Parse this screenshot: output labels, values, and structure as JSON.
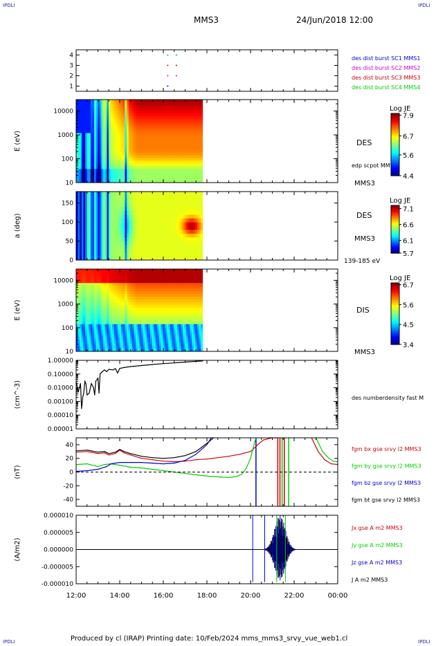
{
  "header": {
    "corner_label": "IPDLI",
    "spacecraft": "MMS3",
    "date_time": "24/Jun/2018 12:00"
  },
  "footer": {
    "text": "Produced by cl (IRAP)   Printing date: 10/Feb/2024   mms_mms3_srvy_vue_web1.cl"
  },
  "colors": {
    "mms1": "#0000cc",
    "mms2": "#cc00cc",
    "mms3": "#cc0000",
    "mms4": "#00cc00"
  },
  "chart_data": [
    {
      "type": "scatter",
      "panel": "burst-availability",
      "ylim": [
        0.5,
        4.5
      ],
      "yticks": [
        "1",
        "2",
        "3",
        "4"
      ],
      "legend": [
        {
          "name": "des dist burst SC1 MMS1",
          "color": "#0000cc"
        },
        {
          "name": "des dist burst SC2 MMS2",
          "color": "#cc00cc"
        },
        {
          "name": "des dist burst SC3 MMS3",
          "color": "#cc0000"
        },
        {
          "name": "des dist burst SC4 MMS4",
          "color": "#00cc00"
        }
      ],
      "series": [
        {
          "sc": 1,
          "color": "#0000cc",
          "x": [
            16.2
          ]
        },
        {
          "sc": 2,
          "color": "#cc00cc",
          "x": [
            16.2,
            16.6
          ]
        },
        {
          "sc": 3,
          "color": "#cc0000",
          "x": [
            16.2,
            16.6
          ]
        },
        {
          "sc": 4,
          "color": "#00cc00",
          "x": [
            16.2,
            16.6
          ]
        }
      ]
    },
    {
      "type": "heatmap",
      "panel": "des-energy",
      "ylabel": "E (eV)",
      "yscale": "log",
      "ylim": [
        10,
        30000
      ],
      "yticks": [
        "10",
        "100",
        "1000",
        "10000"
      ],
      "data_end": 17.8,
      "label": "DES",
      "side_label": "edp scpot MMS3",
      "sc_label": "MMS3",
      "colorbar": {
        "title": "Log JE",
        "min": 4.4,
        "max": 8.0,
        "ticks": [
          "7.9",
          "6.7",
          "5.6",
          "4.4"
        ]
      }
    },
    {
      "type": "heatmap",
      "panel": "des-pitch",
      "ylabel": "a (deg)",
      "ylim": [
        0,
        180
      ],
      "yticks": [
        "0",
        "50",
        "100",
        "150"
      ],
      "data_end": 17.8,
      "label": "DES",
      "sc_label": "MMS3",
      "energy_range": "139-185 eV",
      "colorbar": {
        "title": "Log JE",
        "min": 5.7,
        "max": 7.2,
        "ticks": [
          "7.1",
          "6.6",
          "6.1",
          "5.7"
        ]
      }
    },
    {
      "type": "heatmap",
      "panel": "dis-energy",
      "ylabel": "E (eV)",
      "yscale": "log",
      "ylim": [
        10,
        30000
      ],
      "yticks": [
        "10",
        "100",
        "1000",
        "10000"
      ],
      "data_end": 17.8,
      "label": "DIS",
      "sc_label": "MMS3",
      "colorbar": {
        "title": "Log JE",
        "min": 3.4,
        "max": 6.8,
        "ticks": [
          "6.7",
          "5.6",
          "4.5",
          "3.4"
        ]
      }
    },
    {
      "type": "line",
      "panel": "density",
      "ylabel": "(cm^-3)",
      "yscale": "log",
      "ylim": [
        1e-05,
        1.0
      ],
      "yticks": [
        "0.00001",
        "0.00010",
        "0.00100",
        "0.01000",
        "0.10000",
        "1.00000"
      ],
      "legend": [
        {
          "name": "des numberdensity fast M",
          "color": "#000000"
        }
      ],
      "series": [
        {
          "name": "des numberdensity fast M",
          "color": "#000000",
          "x": [
            12.0,
            12.1,
            12.2,
            12.25,
            12.3,
            12.35,
            12.4,
            12.45,
            12.5,
            12.6,
            12.7,
            12.8,
            12.85,
            12.9,
            13.0,
            13.05,
            13.1,
            13.2,
            13.3,
            13.4,
            13.5,
            13.7,
            13.8,
            13.9,
            14.0,
            14.2,
            14.5,
            15.0,
            15.5,
            16.0,
            16.5,
            17.0,
            17.5,
            17.8
          ],
          "y": [
            0.03,
            0.005,
            0.02,
            0.0003,
            0.002,
            0.004,
            0.03,
            0.02,
            0.003,
            0.004,
            0.02,
            0.01,
            0.003,
            0.03,
            0.05,
            0.004,
            0.1,
            0.15,
            0.2,
            0.15,
            0.22,
            0.2,
            0.25,
            0.12,
            0.26,
            0.3,
            0.35,
            0.42,
            0.5,
            0.58,
            0.65,
            0.75,
            0.85,
            0.9
          ]
        }
      ]
    },
    {
      "type": "line",
      "panel": "magnetic-field",
      "ylabel": "(nT)",
      "ylim": [
        -50,
        50
      ],
      "yticks": [
        "-40",
        "-20",
        "0",
        "20",
        "40"
      ],
      "legend": [
        {
          "name": "fgm bx gse srvy l2 MMS3",
          "color": "#cc0000"
        },
        {
          "name": "fgm by gse srvy l2 MMS3",
          "color": "#00cc00"
        },
        {
          "name": "fgm bz gse srvy l2 MMS3",
          "color": "#0000cc"
        },
        {
          "name": "fgm bt gse srvy l2 MMS3",
          "color": "#000000"
        }
      ],
      "series": [
        {
          "name": "fgm bx gse srvy l2 MMS3",
          "color": "#cc0000",
          "x": [
            12.0,
            12.5,
            13.0,
            13.3,
            13.5,
            13.8,
            14.0,
            14.2,
            14.5,
            15.0,
            15.5,
            16.0,
            16.5,
            17.0,
            17.5,
            18.0,
            18.5,
            19.0,
            19.5,
            20.0,
            20.2,
            20.4,
            20.6,
            21.0,
            21.2
          ],
          "y": [
            29,
            30,
            27,
            28,
            25,
            27,
            32,
            28,
            25,
            20,
            18,
            16,
            15,
            16,
            18,
            19,
            21,
            23,
            26,
            30,
            36,
            42,
            47,
            60,
            75
          ]
        },
        {
          "name": "fgm by gse srvy l2 MMS3",
          "color": "#00cc00",
          "x": [
            12.0,
            12.5,
            13.0,
            13.3,
            13.6,
            14.0,
            14.5,
            15.0,
            15.5,
            16.0,
            16.5,
            17.0,
            17.5,
            18.0,
            18.5,
            19.0,
            19.3,
            19.6,
            19.8,
            20.0,
            20.2,
            20.25
          ],
          "y": [
            11,
            12,
            8,
            11,
            12,
            10,
            7,
            6,
            4,
            2,
            0,
            -2,
            -4,
            -6,
            -7,
            -8,
            -7,
            -3,
            5,
            20,
            45,
            60
          ]
        },
        {
          "name": "fgm bz gse srvy l2 MMS3",
          "color": "#0000cc",
          "x": [
            12.0,
            12.5,
            13.0,
            13.4,
            13.6,
            14.0,
            14.5,
            15.0,
            15.5,
            16.0,
            16.5,
            17.0,
            17.5,
            18.0,
            18.2
          ],
          "y": [
            1,
            2,
            4,
            8,
            12,
            14,
            14,
            14,
            13,
            12,
            13,
            17,
            26,
            40,
            55
          ]
        },
        {
          "name": "fgm bt gse srvy l2 MMS3",
          "color": "#000000",
          "x": [
            12.0,
            12.5,
            13.0,
            13.3,
            13.5,
            13.8,
            14.0,
            14.2,
            14.5,
            15.0,
            15.5,
            16.0,
            16.5,
            17.0,
            17.5,
            18.0,
            18.3
          ],
          "y": [
            31,
            32,
            29,
            30,
            27,
            29,
            33,
            30,
            27,
            23,
            21,
            20,
            21,
            24,
            30,
            42,
            55
          ]
        },
        {
          "name": "fgm by gse srvy l2 MMS3",
          "color": "#00cc00",
          "x": [
            23.0,
            23.3,
            23.6,
            23.8,
            24.0
          ],
          "y": [
            50,
            30,
            20,
            16,
            15
          ]
        },
        {
          "name": "fgm bx gse srvy l2 MMS3",
          "color": "#cc0000",
          "x": [
            22.8,
            23.1,
            23.4,
            23.7,
            24.0
          ],
          "y": [
            50,
            30,
            18,
            12,
            11
          ]
        }
      ]
    },
    {
      "type": "line",
      "panel": "current-density",
      "ylabel": "(A/m2)",
      "ylim": [
        -1e-05,
        1e-05
      ],
      "yticks": [
        "-0.000010",
        "-0.000005",
        "0.000000",
        "0.000005",
        "0.000010"
      ],
      "legend": [
        {
          "name": "Jx gse A m2 MMS3",
          "color": "#cc0000"
        },
        {
          "name": "Jy gse A m2 MMS3",
          "color": "#00cc00"
        },
        {
          "name": "Jz gse A m2 MMS3",
          "color": "#0000cc"
        },
        {
          "name": "J A m2 MMS3",
          "color": "#000000"
        }
      ]
    }
  ],
  "x_axis": {
    "xlim": [
      12,
      24
    ],
    "ticks": [
      "12:00",
      "14:00",
      "16:00",
      "18:00",
      "20:00",
      "22:00",
      "00:00"
    ]
  }
}
